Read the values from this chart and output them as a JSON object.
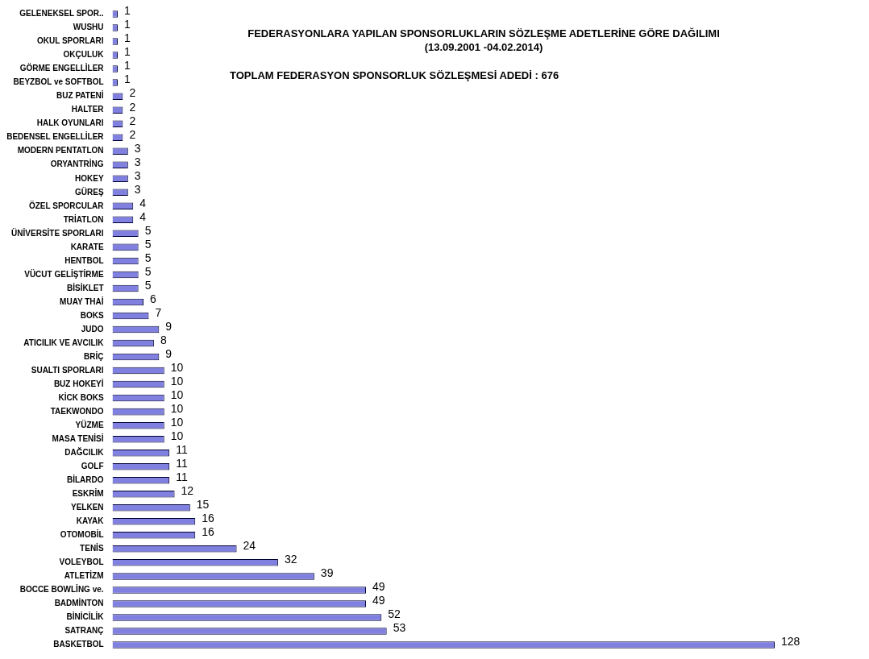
{
  "chart_data": {
    "type": "bar",
    "orientation": "horizontal",
    "title": "FEDERASYONLARA YAPILAN SPONSORLUKLARIN SÖZLEŞME ADETLERİNE GÖRE DAĞILIMI",
    "subtitle": "(13.09.2001 -04.02.2014)",
    "annotations": [
      "TOPLAM FEDERASYON SPONSORLUK SÖZLEŞMESİ ADEDİ :  676"
    ],
    "categories": [
      "GELENEKSEL SPOR..",
      "WUSHU",
      "OKUL SPORLARI",
      "OKÇULUK",
      "GÖRME ENGELLİLER",
      "BEYZBOL ve SOFTBOL",
      "BUZ PATENİ",
      "HALTER",
      "HALK OYUNLARI",
      "BEDENSEL ENGELLİLER",
      "MODERN PENTATLON",
      "ORYANTRİNG",
      "HOKEY",
      "GÜREŞ",
      "ÖZEL SPORCULAR",
      "TRİATLON",
      "ÜNİVERSİTE SPORLARI",
      "KARATE",
      "HENTBOL",
      "VÜCUT GELİŞTİRME",
      "BİSİKLET",
      "MUAY THAİ",
      "BOKS",
      "JUDO",
      "ATICILIK VE AVCILIK",
      "BRİÇ",
      "SUALTI SPORLARI",
      "BUZ HOKEYİ",
      "KİCK BOKS",
      "TAEKWONDO",
      "YÜZME",
      "MASA TENİSİ",
      "DAĞCILIK",
      "GOLF",
      "BİLARDO",
      "ESKRİM",
      "YELKEN",
      "KAYAK",
      "OTOMOBİL",
      "TENİS",
      "VOLEYBOL",
      "ATLETİZM",
      "BOCCE BOWLİNG ve.",
      "BADMİNTON",
      "BİNİCİLİK",
      "SATRANÇ",
      "BASKETBOL"
    ],
    "values": [
      1,
      1,
      1,
      1,
      1,
      1,
      2,
      2,
      2,
      2,
      3,
      3,
      3,
      3,
      4,
      4,
      5,
      5,
      5,
      5,
      5,
      6,
      7,
      9,
      8,
      9,
      10,
      10,
      10,
      10,
      10,
      10,
      11,
      11,
      11,
      12,
      15,
      16,
      16,
      24,
      32,
      39,
      49,
      49,
      52,
      53,
      128
    ],
    "color": "#8080e0",
    "data_labels": true,
    "grid": false,
    "legend": false
  }
}
